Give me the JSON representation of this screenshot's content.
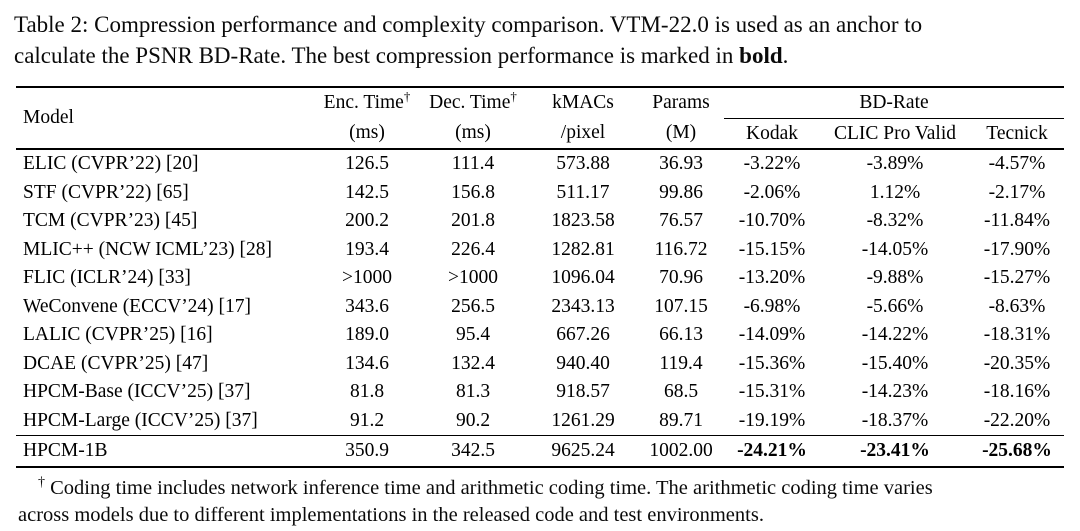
{
  "caption": {
    "line1": "Table 2: Compression performance and complexity comparison. VTM-22.0 is used as an anchor to",
    "line2_before_bold": "calculate the PSNR BD-Rate. The best compression performance is marked in ",
    "bold_word": "bold",
    "line2_suffix": "."
  },
  "table": {
    "headers": {
      "model": "Model",
      "enc_time": "Enc. Time",
      "dec_time": "Dec. Time",
      "dagger": "†",
      "enc_unit": "(ms)",
      "dec_unit": "(ms)",
      "kmacs_line1": "kMACs",
      "kmacs_line2": "/pixel",
      "params_line1": "Params",
      "params_line2": "(M)",
      "bd_rate": "BD-Rate",
      "kodak": "Kodak",
      "clic": "CLIC Pro Valid",
      "tecnick": "Tecnick"
    },
    "rows": [
      {
        "model": "ELIC (CVPR’22) [20]",
        "enc": "126.5",
        "dec": "111.4",
        "kmacs": "573.88",
        "params": "36.93",
        "kodak": "-3.22%",
        "clic": "-3.89%",
        "tecnick": "-4.57%",
        "bold_bd": false,
        "separator_above": false
      },
      {
        "model": "STF (CVPR’22) [65]",
        "enc": "142.5",
        "dec": "156.8",
        "kmacs": "511.17",
        "params": "99.86",
        "kodak": "-2.06%",
        "clic": "1.12%",
        "tecnick": "-2.17%",
        "bold_bd": false,
        "separator_above": false
      },
      {
        "model": "TCM (CVPR’23) [45]",
        "enc": "200.2",
        "dec": "201.8",
        "kmacs": "1823.58",
        "params": "76.57",
        "kodak": "-10.70%",
        "clic": "-8.32%",
        "tecnick": "-11.84%",
        "bold_bd": false,
        "separator_above": false
      },
      {
        "model": "MLIC++ (NCW ICML’23) [28]",
        "enc": "193.4",
        "dec": "226.4",
        "kmacs": "1282.81",
        "params": "116.72",
        "kodak": "-15.15%",
        "clic": "-14.05%",
        "tecnick": "-17.90%",
        "bold_bd": false,
        "separator_above": false
      },
      {
        "model": "FLIC (ICLR’24) [33]",
        "enc": ">1000",
        "dec": ">1000",
        "kmacs": "1096.04",
        "params": "70.96",
        "kodak": "-13.20%",
        "clic": "-9.88%",
        "tecnick": "-15.27%",
        "bold_bd": false,
        "separator_above": false
      },
      {
        "model": "WeConvene (ECCV’24) [17]",
        "enc": "343.6",
        "dec": "256.5",
        "kmacs": "2343.13",
        "params": "107.15",
        "kodak": "-6.98%",
        "clic": "-5.66%",
        "tecnick": "-8.63%",
        "bold_bd": false,
        "separator_above": false
      },
      {
        "model": "LALIC (CVPR’25) [16]",
        "enc": "189.0",
        "dec": "95.4",
        "kmacs": "667.26",
        "params": "66.13",
        "kodak": "-14.09%",
        "clic": "-14.22%",
        "tecnick": "-18.31%",
        "bold_bd": false,
        "separator_above": false
      },
      {
        "model": "DCAE (CVPR’25) [47]",
        "enc": "134.6",
        "dec": "132.4",
        "kmacs": "940.40",
        "params": "119.4",
        "kodak": "-15.36%",
        "clic": "-15.40%",
        "tecnick": "-20.35%",
        "bold_bd": false,
        "separator_above": false
      },
      {
        "model": "HPCM-Base (ICCV’25) [37]",
        "enc": "81.8",
        "dec": "81.3",
        "kmacs": "918.57",
        "params": "68.5",
        "kodak": "-15.31%",
        "clic": "-14.23%",
        "tecnick": "-18.16%",
        "bold_bd": false,
        "separator_above": false
      },
      {
        "model": "HPCM-Large (ICCV’25) [37]",
        "enc": "91.2",
        "dec": "90.2",
        "kmacs": "1261.29",
        "params": "89.71",
        "kodak": "-19.19%",
        "clic": "-18.37%",
        "tecnick": "-22.20%",
        "bold_bd": false,
        "separator_above": false
      },
      {
        "model": "HPCM-1B",
        "enc": "350.9",
        "dec": "342.5",
        "kmacs": "9625.24",
        "params": "1002.00",
        "kodak": "-24.21%",
        "clic": "-23.41%",
        "tecnick": "-25.68%",
        "bold_bd": true,
        "separator_above": true
      }
    ]
  },
  "footnote": {
    "symbol": "†",
    "line1": "Coding time includes network inference time and arithmetic coding time. The arithmetic coding time varies",
    "line2": "across models due to different implementations in the released code and test environments."
  }
}
